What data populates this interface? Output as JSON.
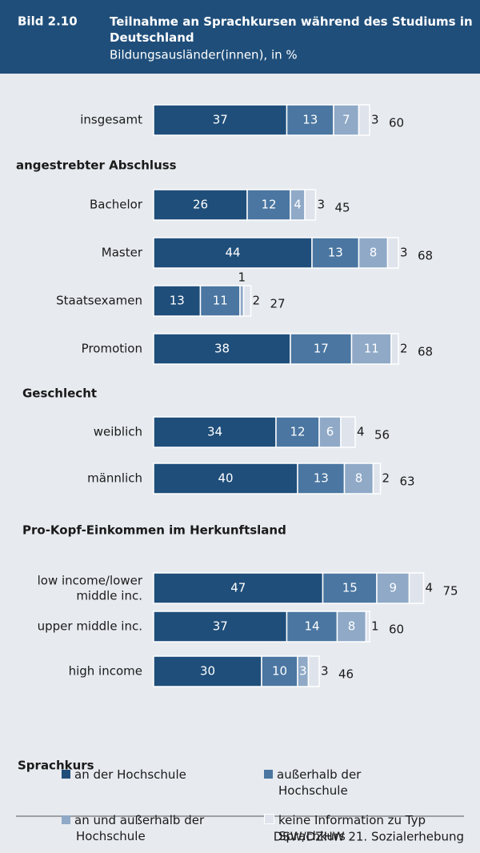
{
  "chart_data": {
    "type": "bar",
    "orientation": "horizontal",
    "stacked": true,
    "figure_number": "Bild 2.10",
    "title": "Teilnahme an Sprachkursen während des Studiums in Deutschland",
    "subtitle": "Bildungsausländer(innen), in %",
    "group_titles": [
      "angestrebter Abschluss",
      "Geschlecht",
      "Pro-Kopf-Einkommen im Herkunftsland"
    ],
    "categories": [
      "insgesamt",
      "Bachelor",
      "Master",
      "Staatsexamen",
      "Promotion",
      "weiblich",
      "männlich",
      "low income/lower middle inc.",
      "upper middle inc.",
      "high income"
    ],
    "series": [
      {
        "name": "an der Hochschule",
        "color": "#1f4e7a",
        "values": [
          37,
          26,
          44,
          13,
          38,
          34,
          40,
          47,
          37,
          30
        ]
      },
      {
        "name": "außerhalb der Hochschule",
        "color": "#4a76a1",
        "values": [
          13,
          12,
          13,
          11,
          17,
          12,
          13,
          15,
          14,
          10
        ]
      },
      {
        "name": "an und außerhalb der Hochschule",
        "color": "#8fa9c7",
        "values": [
          7,
          4,
          8,
          1,
          11,
          6,
          8,
          9,
          8,
          3
        ]
      },
      {
        "name": "keine Information zu Typ Sprachkurs",
        "color": "#dfe4ec",
        "values": [
          3,
          3,
          3,
          2,
          2,
          4,
          2,
          4,
          1,
          3
        ]
      }
    ],
    "totals": [
      60,
      45,
      68,
      27,
      68,
      56,
      63,
      75,
      60,
      46
    ],
    "legend_title": "Sprachkurs",
    "source": "DSW/DZHW 21. Sozialerhebung"
  }
}
